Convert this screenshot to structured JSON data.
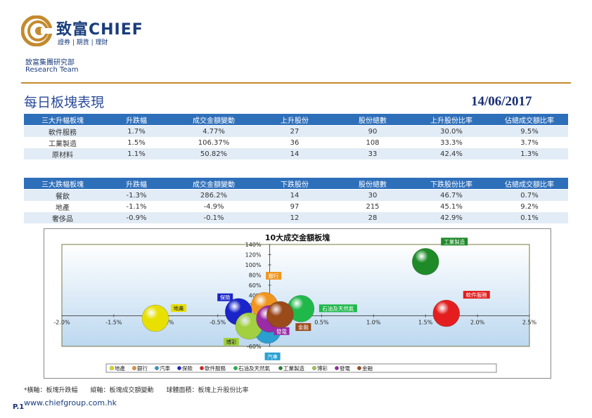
{
  "header": {
    "brand": "致富CHIEF",
    "brand_sub": "證券 | 期貨 | 理財",
    "team_cn": "致富集團研究部",
    "team_en": "Research Team"
  },
  "title": "每日板塊表現",
  "date": "14/06/2017",
  "top_table": {
    "headers": [
      "三大升幅板塊",
      "升跌幅",
      "成交金額變動",
      "上升股份",
      "股份總數",
      "上升股份比率",
      "佔總成交額比率"
    ],
    "rows": [
      [
        "軟件服務",
        "1.7%",
        "4.77%",
        "27",
        "90",
        "30.0%",
        "9.5%"
      ],
      [
        "工業製造",
        "1.5%",
        "106.37%",
        "36",
        "108",
        "33.3%",
        "3.7%"
      ],
      [
        "原材料",
        "1.1%",
        "50.82%",
        "14",
        "33",
        "42.4%",
        "1.3%"
      ]
    ]
  },
  "bottom_table": {
    "headers": [
      "三大跌幅板塊",
      "升跌幅",
      "成交金額變動",
      "下跌股份",
      "股份總數",
      "下跌股份比率",
      "佔總成交額比率"
    ],
    "rows": [
      [
        "餐飲",
        "-1.3%",
        "286.2%",
        "14",
        "30",
        "46.7%",
        "0.7%"
      ],
      [
        "地產",
        "-1.1%",
        "-4.9%",
        "97",
        "215",
        "45.1%",
        "9.2%"
      ],
      [
        "奢侈品",
        "-0.9%",
        "-0.1%",
        "12",
        "28",
        "42.9%",
        "0.1%"
      ]
    ]
  },
  "chart_data": {
    "type": "scatter",
    "title": "10大成交金額板塊",
    "xlim": [
      -2.0,
      2.5
    ],
    "ylim": [
      -60,
      140
    ],
    "x_ticks": [
      "-2.0%",
      "-1.5%",
      "-1.0%",
      "-0.5%",
      "0.0%",
      "0.5%",
      "1.0%",
      "1.5%",
      "2.0%",
      "2.5%"
    ],
    "y_ticks": [
      "140%",
      "120%",
      "100%",
      "80%",
      "60%",
      "40%",
      "20%",
      "0%",
      "-20%",
      "-40%",
      "-60%"
    ],
    "legend_position": "bottom",
    "series": [
      {
        "name": "地產",
        "x": -1.1,
        "y": -4.9,
        "color": "#e8e000"
      },
      {
        "name": "銀行",
        "x": -0.05,
        "y": 20,
        "color": "#f0951e"
      },
      {
        "name": "汽車",
        "x": -0.02,
        "y": -28,
        "color": "#2a9fd0"
      },
      {
        "name": "保險",
        "x": -0.3,
        "y": 8,
        "color": "#1a24c8"
      },
      {
        "name": "軟件服務",
        "x": 1.7,
        "y": 4.77,
        "color": "#e41e1e"
      },
      {
        "name": "石油及天然氣",
        "x": 0.3,
        "y": 14,
        "color": "#21b84a"
      },
      {
        "name": "工業製造",
        "x": 1.5,
        "y": 106.37,
        "color": "#1e8a28"
      },
      {
        "name": "博彩",
        "x": -0.2,
        "y": -20,
        "color": "#a2d040"
      },
      {
        "name": "發電",
        "x": 0.0,
        "y": -6,
        "color": "#9a2aa8"
      },
      {
        "name": "金融",
        "x": 0.1,
        "y": 2,
        "color": "#9b4a1a"
      }
    ]
  },
  "footer": {
    "note": "*橫軸：板塊升跌幅　　縱軸：板塊成交額變動　　球體面積：板塊上升股份比率",
    "page": "P.1",
    "url": "www.chiefgroup.com.hk"
  }
}
